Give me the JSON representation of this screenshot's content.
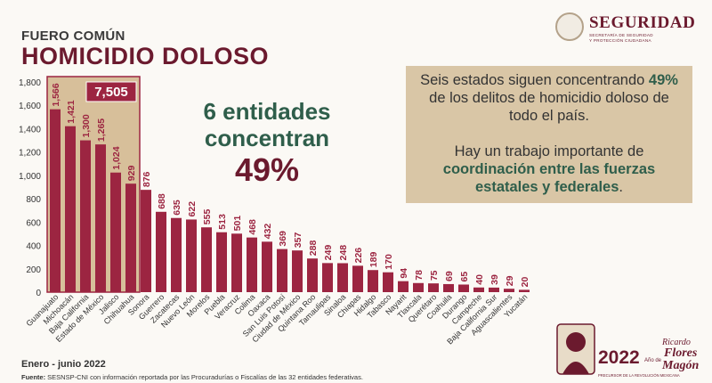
{
  "header": {
    "kicker": "FUERO COMÚN",
    "title": "HOMICIDIO DOLOSO"
  },
  "logo": {
    "name": "SEGURIDAD",
    "subtitle_1": "SECRETARÍA DE SEGURIDAD",
    "subtitle_2": "Y PROTECCIÓN CIUDADANA"
  },
  "highlight": {
    "line1": "6 entidades",
    "line2": "concentran",
    "percent": "49%"
  },
  "info": {
    "p1_a": "Seis estados siguen concentrando ",
    "p1_b": "49%",
    "p1_c": " de los delitos de homicidio doloso de todo el país.",
    "p2_a": "Hay un trabajo importante de ",
    "p2_b": "coordinación entre las fuerzas estatales y federales",
    "p2_c": "."
  },
  "footer": {
    "period": "Enero - junio 2022",
    "source_label": "Fuente:",
    "source_text": " SESNSP-CNI con información reportada por las Procuradurías o Fiscalías de las 32 entidades federativas."
  },
  "badge": {
    "year": "2022",
    "small": "Año de",
    "name1": "Ricardo",
    "name2": "Flores",
    "name3": "Magón",
    "tagline": "PRECURSOR DE LA REVOLUCIÓN MEXICANA"
  },
  "colors": {
    "bar": "#9c2541",
    "highlight_bg": "#d7bf9a",
    "highlight_border": "#9c2541",
    "total_bg": "#9c2541",
    "green": "#2f5e4b",
    "guinda": "#6b1a2e"
  },
  "chart_data": {
    "type": "bar",
    "categories": [
      "Guanajuato",
      "Michoacán",
      "Baja California",
      "Estado de México",
      "Jalisco",
      "Chihuahua",
      "Sonora",
      "Guerrero",
      "Zacatecas",
      "Nuevo León",
      "Morelos",
      "Puebla",
      "Veracruz",
      "Colima",
      "Oaxaca",
      "San Luis Potosí",
      "Ciudad de México",
      "Quintana Roo",
      "Tamaulipas",
      "Sinaloa",
      "Chiapas",
      "Hidalgo",
      "Tabasco",
      "Nayarit",
      "Tlaxcala",
      "Querétaro",
      "Coahuila",
      "Durango",
      "Campeche",
      "Baja California Sur",
      "Aguascalientes",
      "Yucatán"
    ],
    "values": [
      1566,
      1421,
      1300,
      1265,
      1024,
      929,
      876,
      688,
      635,
      622,
      555,
      513,
      501,
      468,
      432,
      369,
      357,
      288,
      249,
      248,
      226,
      189,
      170,
      94,
      78,
      75,
      69,
      65,
      40,
      39,
      29,
      20
    ],
    "value_labels": [
      "1,566",
      "1,421",
      "1,300",
      "1,265",
      "1,024",
      "929",
      "876",
      "688",
      "635",
      "622",
      "555",
      "513",
      "501",
      "468",
      "432",
      "369",
      "357",
      "288",
      "249",
      "248",
      "226",
      "189",
      "170",
      "94",
      "78",
      "75",
      "69",
      "65",
      "40",
      "39",
      "29",
      "20"
    ],
    "yticks": [
      "0",
      "200",
      "400",
      "600",
      "800",
      "1,000",
      "1,200",
      "1,400",
      "1,600",
      "1,800"
    ],
    "ylim": [
      0,
      1800
    ],
    "highlight_count": 6,
    "highlight_total": "7,505",
    "grid": false
  }
}
